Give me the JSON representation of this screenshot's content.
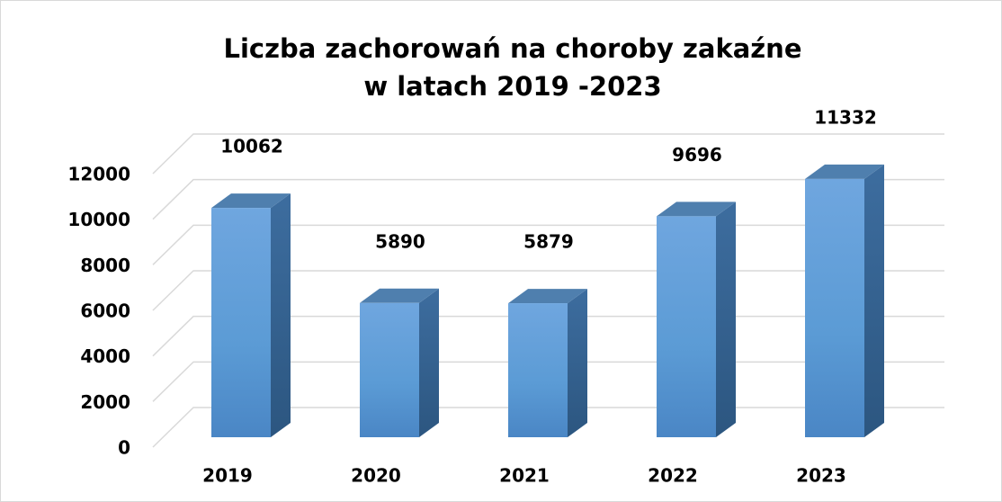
{
  "chart_data": {
    "type": "bar3d",
    "title": [
      "Liczba zachorowań na choroby zakaźne",
      "w latach 2019 -2023"
    ],
    "categories": [
      "2019",
      "2020",
      "2021",
      "2022",
      "2023"
    ],
    "values": [
      10062,
      5890,
      5879,
      9696,
      11332
    ],
    "color": "#5b9bd5",
    "ylim": [
      0,
      12000
    ],
    "yticks": [
      0,
      2000,
      4000,
      6000,
      8000,
      10000,
      12000
    ],
    "grid": true
  }
}
